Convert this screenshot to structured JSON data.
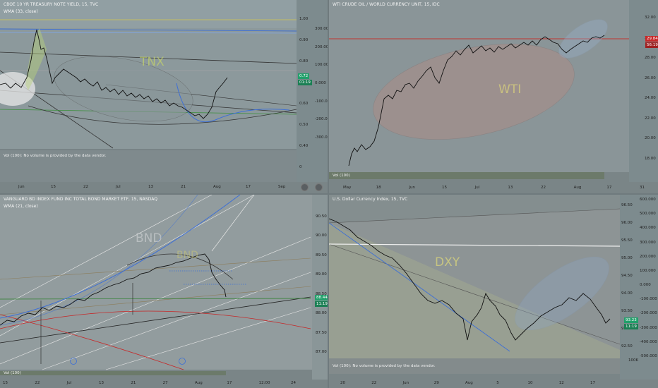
{
  "colors": {
    "up": "#22ab94",
    "down": "#e53935"
  },
  "panes": [
    {
      "id": "tnx",
      "title": "CBOE 10 YR TREASURY NOTE YIELD, 15, TVC",
      "subtitle": "WMA (33, close)",
      "vol": "Vol (100): No volume is provided by the data vendor.",
      "label": "TNX",
      "right_ticks": [
        "1.00",
        "0.90",
        "0.80",
        "0.70",
        "0.60",
        "0.50",
        "0.40",
        "0"
      ],
      "mid_ticks": [
        "300.000",
        "200.000",
        "100.000",
        "0.000",
        "-100.000",
        "-200.000",
        "-300.000"
      ],
      "price": "0.72",
      "time": "01:19",
      "x_ticks": [
        "Jun",
        "15",
        "22",
        "Jul",
        "13",
        "21",
        "Aug",
        "17",
        "Sep"
      ]
    },
    {
      "id": "wti",
      "title": "WTI CRUDE OIL / WORLD CURRENCY UNIT, 15, IDC",
      "vol": "Vol (100)",
      "label": "WTI",
      "right_ticks": [
        "32.00",
        "30.00",
        "28.00",
        "26.00",
        "24.00",
        "22.00",
        "20.00",
        "18.00"
      ],
      "price": "29.84",
      "time": "56:19",
      "x_ticks": [
        "May",
        "18",
        "Jun",
        "15",
        "Jul",
        "13",
        "22",
        "Aug",
        "17",
        "31"
      ]
    },
    {
      "id": "bnd",
      "title": "VANGUARD BD INDEX FUND INC TOTAL BOND MARKET ETF, 15, NASDAQ",
      "subtitle": "WMA (21, close)",
      "vol": "Vol (100)",
      "label": "BND",
      "label2": "BND",
      "right_ticks": [
        "90.50",
        "90.00",
        "89.50",
        "89.00",
        "88.50",
        "88.00",
        "87.50",
        "87.00"
      ],
      "price": "88.44",
      "time": "11:19",
      "x_ticks": [
        "15",
        "22",
        "Jul",
        "13",
        "21",
        "27",
        "Aug",
        "17",
        "12:00",
        "24"
      ]
    },
    {
      "id": "dxy",
      "title": "U.S. Dollar Currency Index, 15, TVC",
      "vol": "Vol (100): No volume is provided by the data vendor.",
      "label": "DXY",
      "right_ticks": [
        "96.50",
        "96.00",
        "95.50",
        "95.00",
        "94.50",
        "94.00",
        "93.50",
        "93.00",
        "92.50"
      ],
      "mid_ticks": [
        "600.000",
        "500.000",
        "400.000",
        "300.000",
        "200.000",
        "100.000",
        "0.000",
        "-100.000",
        "-200.000",
        "-300.000",
        "-400.000",
        "-500.000"
      ],
      "price": "93.23",
      "time": "11:19",
      "vol_tick": "100K",
      "x_ticks": [
        "20",
        "22",
        "Jun",
        "29",
        "Aug",
        "5",
        "10",
        "12",
        "17"
      ]
    }
  ],
  "chart_data": [
    {
      "type": "line",
      "title": "CBOE 10 YR TREASURY NOTE YIELD, 15, TVC",
      "x": [
        "Jun",
        "15",
        "22",
        "Jul",
        "13",
        "21",
        "Aug"
      ],
      "series": [
        {
          "values": [
            0.63,
            0.94,
            0.7,
            0.66,
            0.62,
            0.55,
            0.72
          ]
        }
      ],
      "ylim": [
        0.35,
        1.05
      ]
    },
    {
      "type": "line",
      "title": "WTI CRUDE OIL / WORLD CURRENCY UNIT, 15, IDC",
      "x": [
        "May",
        "18",
        "Jun",
        "15",
        "Jul",
        "13",
        "22",
        "Aug"
      ],
      "series": [
        {
          "values": [
            17.5,
            20,
            24,
            26.5,
            27.5,
            28.5,
            29,
            29.84
          ]
        }
      ],
      "ylim": [
        17,
        33
      ]
    },
    {
      "type": "line",
      "title": "VANGUARD BD INDEX FUND INC TOTAL BOND MARKET ETF, 15, NASDAQ",
      "x": [
        "15",
        "22",
        "Jul",
        "13",
        "21",
        "27",
        "Aug"
      ],
      "series": [
        {
          "values": [
            87.7,
            87.9,
            88.05,
            88.3,
            88.7,
            89.1,
            88.44
          ]
        }
      ],
      "ylim": [
        86.8,
        90.8
      ]
    },
    {
      "type": "line",
      "title": "U.S. Dollar Currency Index, 15, TVC",
      "x": [
        "20",
        "22",
        "Jun",
        "29",
        "Aug",
        "5",
        "10",
        "12"
      ],
      "series": [
        {
          "values": [
            96.3,
            95.6,
            94.3,
            93.6,
            92.6,
            93.3,
            93.7,
            93.23
          ]
        }
      ],
      "ylim": [
        92,
        96.8
      ]
    }
  ]
}
